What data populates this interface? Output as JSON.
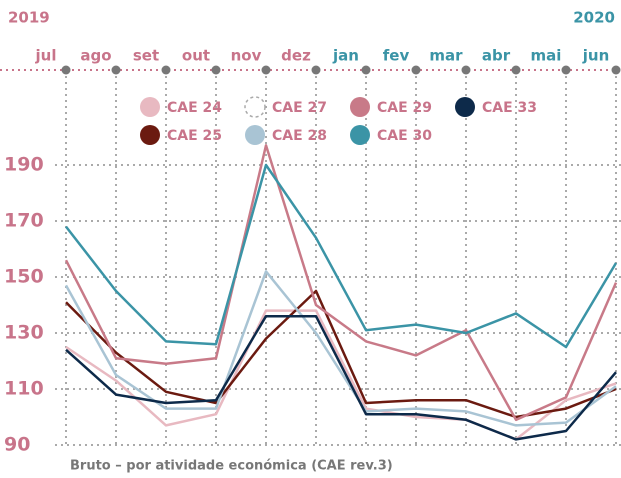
{
  "chart_data": {
    "type": "line",
    "year_start": "2019",
    "year_end": "2020",
    "footnote": "Bruto – por atividade económica (CAE rev.3)",
    "categories": [
      "jul",
      "ago",
      "set",
      "out",
      "nov",
      "dez",
      "jan",
      "fev",
      "mar",
      "abr",
      "mai",
      "jun"
    ],
    "category_colors": [
      "#c8748a",
      "#c8748a",
      "#c8748a",
      "#c8748a",
      "#c8748a",
      "#c8748a",
      "#3b94a6",
      "#3b94a6",
      "#3b94a6",
      "#3b94a6",
      "#3b94a6",
      "#3b94a6"
    ],
    "series": [
      {
        "name": "CAE 24",
        "color": "#e8b9c1",
        "values": [
          125,
          113,
          97,
          101,
          138,
          138,
          103,
          100,
          99,
          92,
          106,
          112
        ]
      },
      {
        "name": "CAE 25",
        "color": "#6b1a10",
        "values": [
          141,
          123,
          109,
          105,
          128,
          145,
          105,
          106,
          106,
          100,
          103,
          110
        ]
      },
      {
        "name": "CAE 27",
        "color": "#aaaaaa",
        "dashed": true,
        "values": [
          null,
          null,
          null,
          null,
          null,
          null,
          null,
          null,
          null,
          null,
          null,
          null
        ]
      },
      {
        "name": "CAE 28",
        "color": "#a9c4d4",
        "values": [
          147,
          115,
          103,
          103,
          152,
          130,
          102,
          103,
          102,
          97,
          98,
          111
        ]
      },
      {
        "name": "CAE 29",
        "color": "#c87a88",
        "values": [
          156,
          121,
          119,
          121,
          197,
          140,
          127,
          122,
          131,
          99,
          107,
          148
        ]
      },
      {
        "name": "CAE 30",
        "color": "#3b94a6",
        "values": [
          168,
          145,
          127,
          126,
          190,
          164,
          131,
          133,
          130,
          137,
          125,
          155
        ]
      },
      {
        "name": "CAE 33",
        "color": "#0d2a4a",
        "values": [
          124,
          108,
          105,
          106,
          136,
          136,
          101,
          101,
          99,
          92,
          95,
          116
        ]
      }
    ],
    "ylim": [
      90,
      200
    ],
    "yticks": [
      90,
      110,
      130,
      150,
      170,
      190
    ],
    "grid": true
  }
}
